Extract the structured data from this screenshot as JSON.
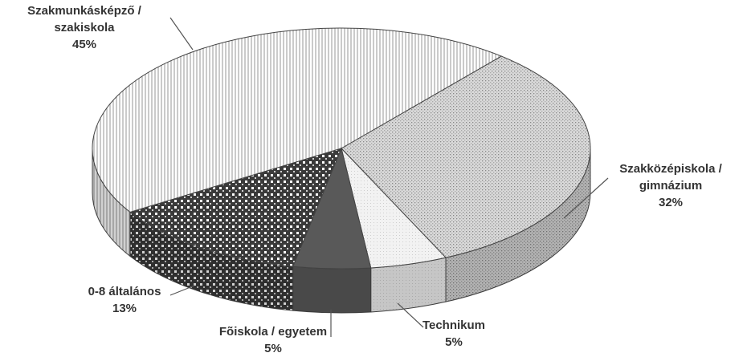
{
  "chart_data": {
    "type": "pie",
    "three_d": true,
    "categories": [
      "Szakmunkásképző /\nszakiskola",
      "Szakközépiskola /\ngimnázium",
      "Technikum",
      "Fõiskola / egyetem",
      "0-8 általános"
    ],
    "values": [
      45,
      32,
      5,
      5,
      13
    ],
    "value_labels": [
      "45%",
      "32%",
      "5%",
      "5%",
      "13%"
    ],
    "colors": [
      "#ffffff",
      "#d9d9d9",
      "#f2f2f2",
      "#595959",
      "#3a3a3a"
    ]
  }
}
